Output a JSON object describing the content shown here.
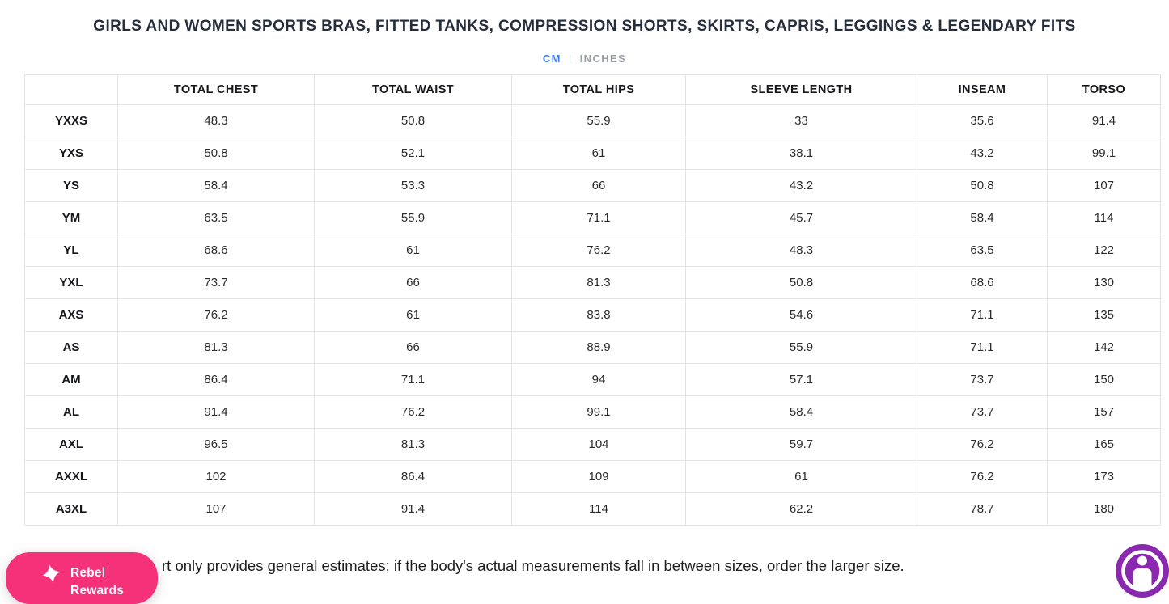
{
  "header": {
    "title": "GIRLS AND WOMEN SPORTS BRAS, FITTED TANKS, COMPRESSION SHORTS, SKIRTS, CAPRIS, LEGGINGS & LEGENDARY FITS"
  },
  "unit_toggle": {
    "cm": "CM",
    "separator": "|",
    "inches": "INCHES",
    "selected": "CM"
  },
  "size_chart": {
    "columns": [
      "",
      "TOTAL CHEST",
      "TOTAL WAIST",
      "TOTAL HIPS",
      "SLEEVE LENGTH",
      "INSEAM",
      "TORSO"
    ],
    "rows": [
      {
        "size": "YXXS",
        "values": [
          "48.3",
          "50.8",
          "55.9",
          "33",
          "35.6",
          "91.4"
        ]
      },
      {
        "size": "YXS",
        "values": [
          "50.8",
          "52.1",
          "61",
          "38.1",
          "43.2",
          "99.1"
        ]
      },
      {
        "size": "YS",
        "values": [
          "58.4",
          "53.3",
          "66",
          "43.2",
          "50.8",
          "107"
        ]
      },
      {
        "size": "YM",
        "values": [
          "63.5",
          "55.9",
          "71.1",
          "45.7",
          "58.4",
          "114"
        ]
      },
      {
        "size": "YL",
        "values": [
          "68.6",
          "61",
          "76.2",
          "48.3",
          "63.5",
          "122"
        ]
      },
      {
        "size": "YXL",
        "values": [
          "73.7",
          "66",
          "81.3",
          "50.8",
          "68.6",
          "130"
        ]
      },
      {
        "size": "AXS",
        "values": [
          "76.2",
          "61",
          "83.8",
          "54.6",
          "71.1",
          "135"
        ]
      },
      {
        "size": "AS",
        "values": [
          "81.3",
          "66",
          "88.9",
          "55.9",
          "71.1",
          "142"
        ]
      },
      {
        "size": "AM",
        "values": [
          "86.4",
          "71.1",
          "94",
          "57.1",
          "73.7",
          "150"
        ]
      },
      {
        "size": "AL",
        "values": [
          "91.4",
          "76.2",
          "99.1",
          "58.4",
          "73.7",
          "157"
        ]
      },
      {
        "size": "AXL",
        "values": [
          "96.5",
          "81.3",
          "104",
          "59.7",
          "76.2",
          "165"
        ]
      },
      {
        "size": "AXXL",
        "values": [
          "102",
          "86.4",
          "109",
          "61",
          "76.2",
          "173"
        ]
      },
      {
        "size": "A3XL",
        "values": [
          "107",
          "91.4",
          "114",
          "62.2",
          "78.7",
          "180"
        ]
      }
    ]
  },
  "footer": {
    "note_visible_text": "rt only provides general estimates; if the body's actual measurements fall in between sizes, order the larger size."
  },
  "widgets": {
    "rewards_label": "Rebel Rewards",
    "rewards_icon": "sparkle-star-icon",
    "accessibility_icon": "accessibility-person-icon"
  },
  "colors": {
    "title_text": "#252e3d",
    "unit_active_blue": "#3b7ff0",
    "unit_inactive_gray": "#9b9fa3",
    "table_border": "#e3e3e3",
    "rewards_pink": "#f43179",
    "accessibility_purple": "#8a28b0"
  }
}
